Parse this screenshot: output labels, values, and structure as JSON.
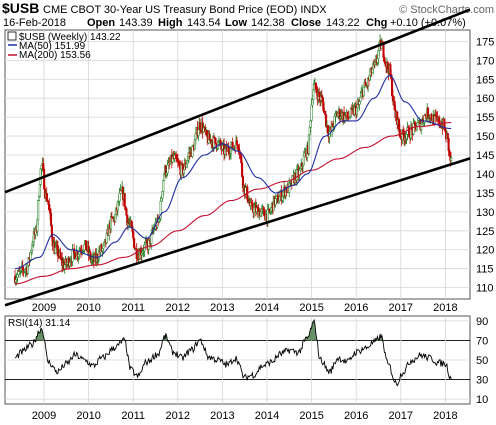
{
  "header": {
    "symbol": "$USB",
    "subtitle": "CME CBOT 30-Year US Treasury Bond Price (EOD)  INDX",
    "brand": "© StockCharts.com",
    "date": "16-Feb-2018",
    "open_label": "Open",
    "open": "143.39",
    "high_label": "High",
    "high": "143.54",
    "low_label": "Low",
    "low": "142.38",
    "close_label": "Close",
    "close": "143.22",
    "chg_label": "Chg",
    "chg": "+0.10 (+0.07%)"
  },
  "legend": {
    "price": "$USB (Weekly) 143.22",
    "ma50": "MA(50) 151.99",
    "ma200": "MA(200) 153.56",
    "rsi": "RSI(14) 31.14"
  },
  "colors": {
    "up": "#1a7a1a",
    "down": "#c00000",
    "ma50": "#1f2fa3",
    "ma200": "#c4102f",
    "channel": "#000000",
    "grid": "#d6d6d6",
    "rsi": "#000000",
    "rsi_fill": "#4f7f4f"
  },
  "chart_data": [
    {
      "type": "candlestick",
      "x_ticks": [
        "2009",
        "2010",
        "2011",
        "2012",
        "2013",
        "2014",
        "2015",
        "2016",
        "2017",
        "2018"
      ],
      "y_ticks": [
        110,
        115,
        120,
        125,
        130,
        135,
        140,
        145,
        150,
        155,
        160,
        165,
        170,
        175
      ],
      "ylim": [
        107,
        178
      ],
      "grid": true,
      "legend_position": "top-left",
      "close_anchors": [
        {
          "t": 2008.35,
          "v": 113
        },
        {
          "t": 2008.6,
          "v": 115
        },
        {
          "t": 2008.8,
          "v": 124
        },
        {
          "t": 2008.95,
          "v": 142
        },
        {
          "t": 2009.05,
          "v": 134
        },
        {
          "t": 2009.25,
          "v": 120
        },
        {
          "t": 2009.45,
          "v": 116
        },
        {
          "t": 2009.7,
          "v": 119
        },
        {
          "t": 2009.9,
          "v": 121
        },
        {
          "t": 2010.1,
          "v": 117
        },
        {
          "t": 2010.3,
          "v": 120
        },
        {
          "t": 2010.55,
          "v": 128
        },
        {
          "t": 2010.75,
          "v": 135
        },
        {
          "t": 2010.9,
          "v": 127
        },
        {
          "t": 2011.1,
          "v": 119
        },
        {
          "t": 2011.3,
          "v": 121
        },
        {
          "t": 2011.55,
          "v": 127
        },
        {
          "t": 2011.72,
          "v": 141
        },
        {
          "t": 2011.9,
          "v": 144
        },
        {
          "t": 2012.1,
          "v": 141
        },
        {
          "t": 2012.3,
          "v": 146
        },
        {
          "t": 2012.5,
          "v": 153
        },
        {
          "t": 2012.7,
          "v": 149
        },
        {
          "t": 2012.9,
          "v": 148
        },
        {
          "t": 2013.05,
          "v": 146
        },
        {
          "t": 2013.2,
          "v": 147
        },
        {
          "t": 2013.35,
          "v": 148
        },
        {
          "t": 2013.5,
          "v": 136
        },
        {
          "t": 2013.65,
          "v": 131
        },
        {
          "t": 2013.85,
          "v": 130
        },
        {
          "t": 2014.0,
          "v": 129
        },
        {
          "t": 2014.2,
          "v": 133
        },
        {
          "t": 2014.45,
          "v": 136
        },
        {
          "t": 2014.7,
          "v": 140
        },
        {
          "t": 2014.9,
          "v": 146
        },
        {
          "t": 2015.05,
          "v": 163
        },
        {
          "t": 2015.2,
          "v": 160
        },
        {
          "t": 2015.4,
          "v": 151
        },
        {
          "t": 2015.6,
          "v": 156
        },
        {
          "t": 2015.8,
          "v": 155
        },
        {
          "t": 2016.0,
          "v": 157
        },
        {
          "t": 2016.2,
          "v": 163
        },
        {
          "t": 2016.4,
          "v": 168
        },
        {
          "t": 2016.55,
          "v": 174
        },
        {
          "t": 2016.72,
          "v": 168
        },
        {
          "t": 2016.9,
          "v": 155
        },
        {
          "t": 2017.0,
          "v": 150
        },
        {
          "t": 2017.2,
          "v": 151
        },
        {
          "t": 2017.4,
          "v": 153
        },
        {
          "t": 2017.6,
          "v": 156
        },
        {
          "t": 2017.8,
          "v": 154
        },
        {
          "t": 2017.95,
          "v": 153
        },
        {
          "t": 2018.02,
          "v": 150
        },
        {
          "t": 2018.13,
          "v": 143.22
        }
      ],
      "ma50_anchors": [
        {
          "t": 2008.35,
          "v": 115
        },
        {
          "t": 2008.9,
          "v": 118
        },
        {
          "t": 2009.2,
          "v": 124
        },
        {
          "t": 2009.6,
          "v": 120
        },
        {
          "t": 2010.2,
          "v": 118
        },
        {
          "t": 2010.6,
          "v": 122
        },
        {
          "t": 2010.9,
          "v": 126
        },
        {
          "t": 2011.3,
          "v": 123
        },
        {
          "t": 2011.7,
          "v": 130
        },
        {
          "t": 2012.1,
          "v": 139
        },
        {
          "t": 2012.6,
          "v": 145
        },
        {
          "t": 2013.0,
          "v": 148
        },
        {
          "t": 2013.35,
          "v": 146
        },
        {
          "t": 2013.8,
          "v": 139
        },
        {
          "t": 2014.2,
          "v": 135
        },
        {
          "t": 2014.6,
          "v": 137
        },
        {
          "t": 2014.9,
          "v": 140
        },
        {
          "t": 2015.3,
          "v": 150
        },
        {
          "t": 2015.7,
          "v": 154
        },
        {
          "t": 2016.0,
          "v": 154
        },
        {
          "t": 2016.4,
          "v": 160
        },
        {
          "t": 2016.75,
          "v": 166
        },
        {
          "t": 2017.1,
          "v": 159
        },
        {
          "t": 2017.5,
          "v": 154
        },
        {
          "t": 2018.13,
          "v": 151.99
        }
      ],
      "ma200_anchors": [
        {
          "t": 2008.35,
          "v": 111
        },
        {
          "t": 2009.0,
          "v": 113
        },
        {
          "t": 2009.6,
          "v": 115
        },
        {
          "t": 2010.2,
          "v": 116
        },
        {
          "t": 2010.8,
          "v": 118
        },
        {
          "t": 2011.4,
          "v": 121
        },
        {
          "t": 2012.0,
          "v": 125
        },
        {
          "t": 2012.6,
          "v": 129
        },
        {
          "t": 2013.2,
          "v": 133
        },
        {
          "t": 2013.8,
          "v": 136
        },
        {
          "t": 2014.4,
          "v": 138
        },
        {
          "t": 2015.0,
          "v": 141
        },
        {
          "t": 2015.6,
          "v": 144
        },
        {
          "t": 2016.2,
          "v": 147
        },
        {
          "t": 2016.8,
          "v": 150
        },
        {
          "t": 2017.4,
          "v": 152.5
        },
        {
          "t": 2018.13,
          "v": 153.56
        }
      ],
      "channel_upper": [
        {
          "t": 2008.3,
          "v": 136
        },
        {
          "t": 2018.25,
          "v": 182
        }
      ],
      "channel_lower": [
        {
          "t": 2008.3,
          "v": 106
        },
        {
          "t": 2018.25,
          "v": 143
        }
      ]
    },
    {
      "type": "line",
      "name": "RSI(14)",
      "x_ticks": [
        "2009",
        "2010",
        "2011",
        "2012",
        "2013",
        "2014",
        "2015",
        "2016",
        "2017",
        "2018"
      ],
      "y_ticks": [
        10,
        30,
        50,
        70,
        90
      ],
      "ylim": [
        5,
        95
      ],
      "reference_lines": [
        30,
        70
      ],
      "anchors": [
        {
          "t": 2008.35,
          "v": 52
        },
        {
          "t": 2008.5,
          "v": 58
        },
        {
          "t": 2008.7,
          "v": 65
        },
        {
          "t": 2008.95,
          "v": 82
        },
        {
          "t": 2009.1,
          "v": 48
        },
        {
          "t": 2009.3,
          "v": 38
        },
        {
          "t": 2009.5,
          "v": 46
        },
        {
          "t": 2009.7,
          "v": 55
        },
        {
          "t": 2009.9,
          "v": 50
        },
        {
          "t": 2010.1,
          "v": 44
        },
        {
          "t": 2010.3,
          "v": 52
        },
        {
          "t": 2010.6,
          "v": 63
        },
        {
          "t": 2010.8,
          "v": 70
        },
        {
          "t": 2010.95,
          "v": 40
        },
        {
          "t": 2011.1,
          "v": 33
        },
        {
          "t": 2011.3,
          "v": 48
        },
        {
          "t": 2011.55,
          "v": 56
        },
        {
          "t": 2011.72,
          "v": 74
        },
        {
          "t": 2011.9,
          "v": 58
        },
        {
          "t": 2012.1,
          "v": 52
        },
        {
          "t": 2012.3,
          "v": 60
        },
        {
          "t": 2012.5,
          "v": 70
        },
        {
          "t": 2012.7,
          "v": 53
        },
        {
          "t": 2012.9,
          "v": 50
        },
        {
          "t": 2013.1,
          "v": 45
        },
        {
          "t": 2013.3,
          "v": 52
        },
        {
          "t": 2013.5,
          "v": 32
        },
        {
          "t": 2013.7,
          "v": 35
        },
        {
          "t": 2013.9,
          "v": 44
        },
        {
          "t": 2014.1,
          "v": 48
        },
        {
          "t": 2014.3,
          "v": 56
        },
        {
          "t": 2014.5,
          "v": 60
        },
        {
          "t": 2014.7,
          "v": 58
        },
        {
          "t": 2014.9,
          "v": 72
        },
        {
          "t": 2015.05,
          "v": 88
        },
        {
          "t": 2015.2,
          "v": 50
        },
        {
          "t": 2015.4,
          "v": 38
        },
        {
          "t": 2015.6,
          "v": 52
        },
        {
          "t": 2015.8,
          "v": 48
        },
        {
          "t": 2016.0,
          "v": 58
        },
        {
          "t": 2016.2,
          "v": 62
        },
        {
          "t": 2016.4,
          "v": 68
        },
        {
          "t": 2016.55,
          "v": 74
        },
        {
          "t": 2016.72,
          "v": 45
        },
        {
          "t": 2016.9,
          "v": 26
        },
        {
          "t": 2017.05,
          "v": 38
        },
        {
          "t": 2017.25,
          "v": 50
        },
        {
          "t": 2017.45,
          "v": 55
        },
        {
          "t": 2017.65,
          "v": 52
        },
        {
          "t": 2017.85,
          "v": 47
        },
        {
          "t": 2018.0,
          "v": 46
        },
        {
          "t": 2018.13,
          "v": 31.14
        }
      ]
    }
  ]
}
